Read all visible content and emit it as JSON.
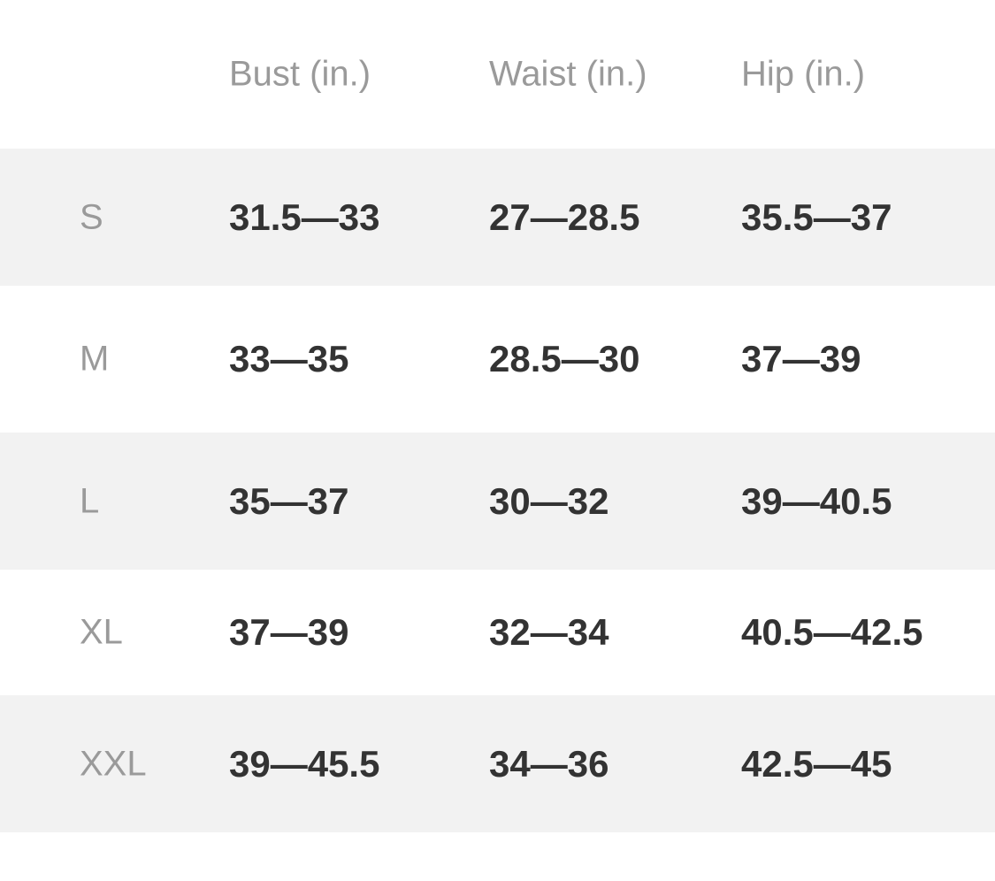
{
  "table": {
    "headers": [
      "",
      "Bust (in.)",
      "Waist (in.)",
      "Hip (in.)"
    ],
    "rows": [
      {
        "size": "S",
        "bust": "31.5—33",
        "waist": "27—28.5",
        "hip": "35.5—37"
      },
      {
        "size": "M",
        "bust": "33—35",
        "waist": "28.5—30",
        "hip": "37—39"
      },
      {
        "size": "L",
        "bust": "35—37",
        "waist": "30—32",
        "hip": "39—40.5"
      },
      {
        "size": "XL",
        "bust": "37—39",
        "waist": "32—34",
        "hip": "40.5—42.5"
      },
      {
        "size": "XXL",
        "bust": "39—45.5",
        "waist": "34—36",
        "hip": "42.5—45"
      }
    ],
    "colors": {
      "stripe": "#f2f2f2",
      "label": "#9a9a9a",
      "value": "#333333"
    }
  }
}
